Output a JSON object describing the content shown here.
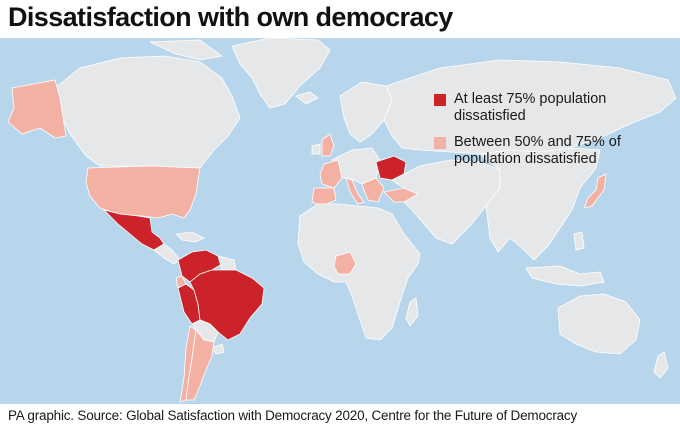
{
  "title": "Dissatisfaction with own democracy",
  "source": "PA graphic. Source: Global Satisfaction with Democracy 2020, Centre for the Future of Democracy",
  "colors": {
    "ocean": "#b7d6ec",
    "land": "#e6e7e9",
    "border": "#ffffff",
    "high": "#cc2229",
    "medium": "#f3b1a3"
  },
  "legend": [
    {
      "label": "At least 75% population dissatisfied",
      "color": "#cc2229"
    },
    {
      "label": "Between 50% and 75% of population dissatisfied",
      "color": "#f3b1a3"
    }
  ]
}
